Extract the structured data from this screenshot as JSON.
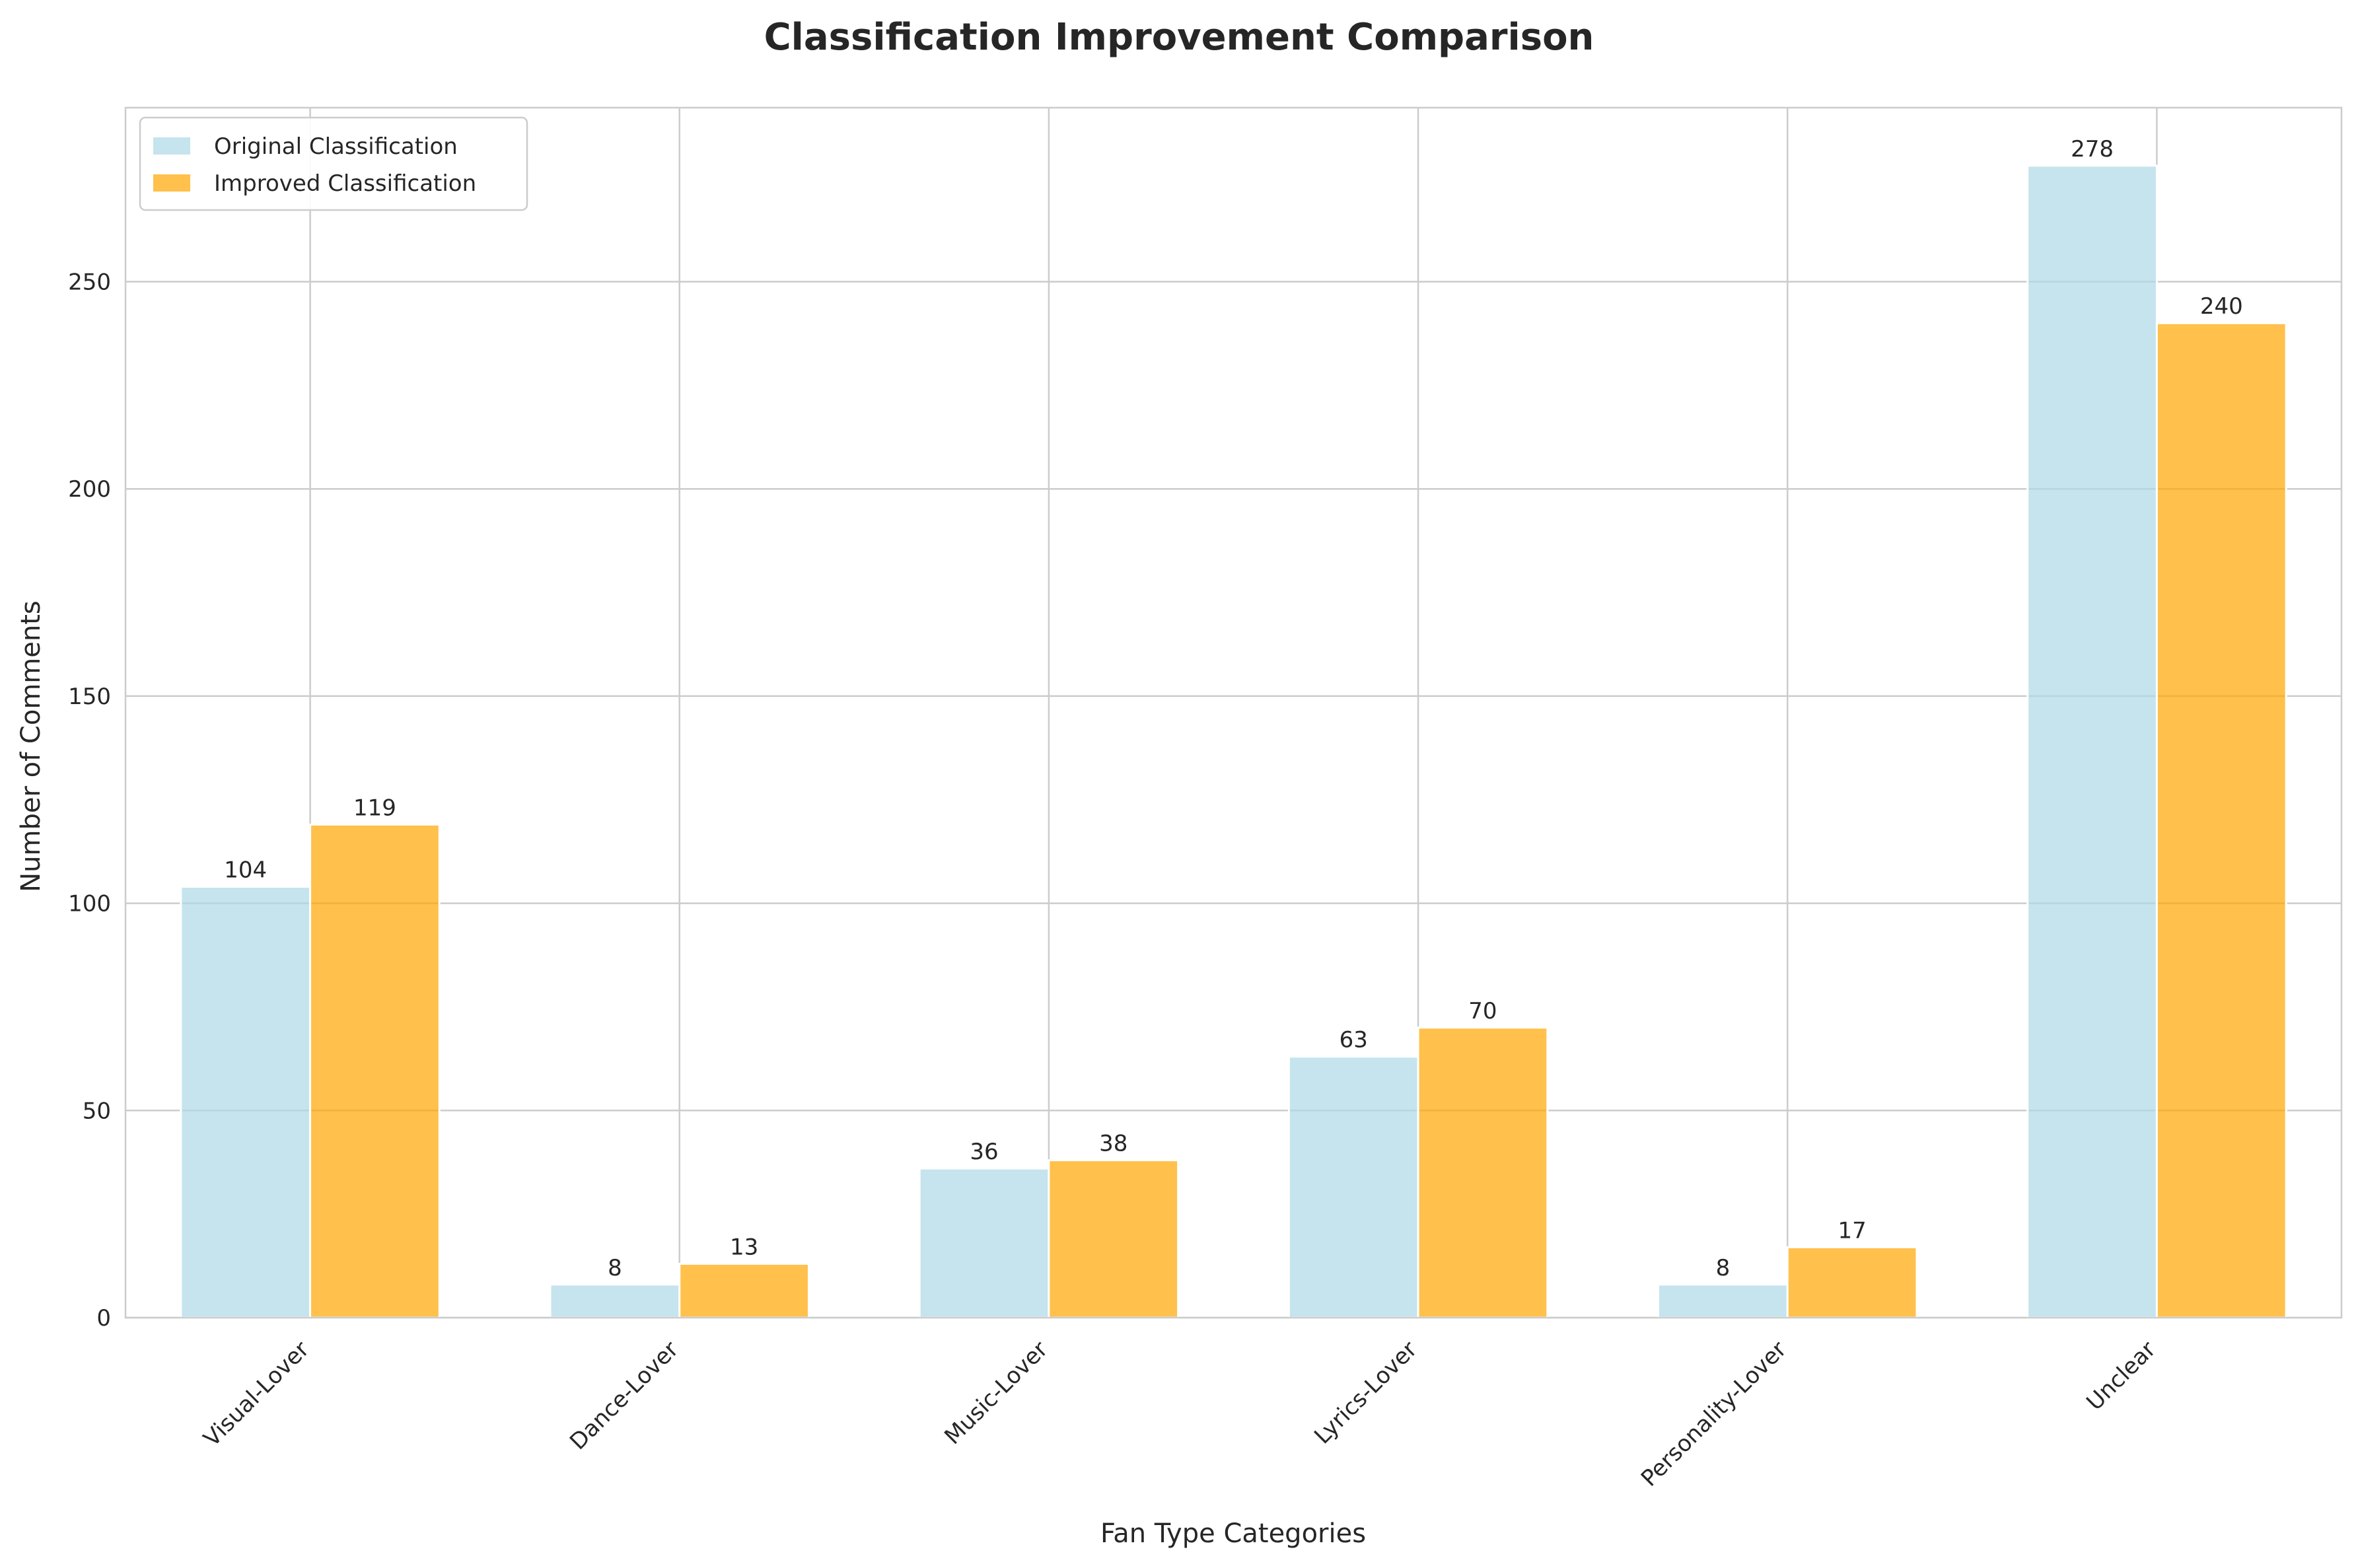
{
  "chart_data": {
    "type": "bar",
    "title": "Classification Improvement Comparison",
    "xlabel": "Fan Type Categories",
    "ylabel": "Number of Comments",
    "categories": [
      "Visual-Lover",
      "Dance-Lover",
      "Music-Lover",
      "Lyrics-Lover",
      "Personality-Lover",
      "Unclear"
    ],
    "series": [
      {
        "name": "Original Classification",
        "values": [
          104,
          8,
          36,
          63,
          8,
          278
        ],
        "color": "#add8e6"
      },
      {
        "name": "Improved Classification",
        "values": [
          119,
          13,
          38,
          70,
          17,
          240
        ],
        "color": "#ffa500"
      }
    ],
    "ylim": [
      0,
      292
    ],
    "yticks": [
      0,
      50,
      100,
      150,
      200,
      250
    ],
    "grid": true,
    "legend_position": "top-left",
    "data_labels": true,
    "background": "#ffffff",
    "grid_color": "#cccccc",
    "spine_color": "#cccccc"
  }
}
